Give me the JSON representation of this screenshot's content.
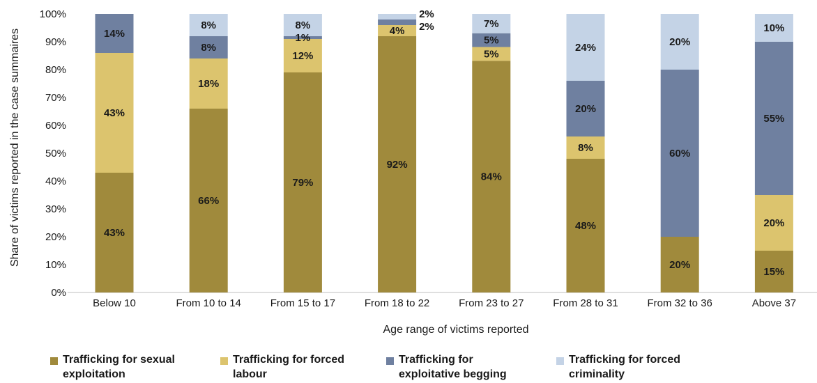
{
  "chart_data": {
    "type": "bar",
    "stacked": true,
    "xlabel": "Age range of victims reported",
    "ylabel": "Share of victims reported in the case summaires",
    "ylim": [
      0,
      100
    ],
    "yticks": [
      "0%",
      "10%",
      "20%",
      "30%",
      "40%",
      "50%",
      "60%",
      "70%",
      "80%",
      "90%",
      "100%"
    ],
    "categories": [
      "Below 10",
      "From 10 to 14",
      "From 15 to 17",
      "From 18 to 22",
      "From 23 to 27",
      "From 28 to 31",
      "From 32 to 36",
      "Above 37"
    ],
    "series": [
      {
        "name": "Trafficking for sexual exploitation",
        "legend_lines": [
          "Trafficking for sexual",
          "exploitation"
        ],
        "color": "#a08a3c",
        "values": [
          43,
          66,
          79,
          92,
          84,
          48,
          20,
          15
        ],
        "labels": [
          "43%",
          "66%",
          "79%",
          "92%",
          "84%",
          "48%",
          "20%",
          "15%"
        ]
      },
      {
        "name": "Trafficking for forced labour",
        "legend_lines": [
          "Trafficking for forced",
          "labour"
        ],
        "color": "#dcc46e",
        "values": [
          43,
          18,
          12,
          4,
          5,
          8,
          0,
          20
        ],
        "labels": [
          "43%",
          "18%",
          "12%",
          "4%",
          "5%",
          "8%",
          "",
          "20%"
        ]
      },
      {
        "name": "Trafficking for exploitative begging",
        "legend_lines": [
          "Trafficking for",
          "exploitative begging"
        ],
        "color": "#6f80a0",
        "values": [
          14,
          8,
          1,
          2,
          5,
          20,
          60,
          55
        ],
        "labels": [
          "14%",
          "8%",
          "1%",
          "2%",
          "5%",
          "20%",
          "60%",
          "55%"
        ]
      },
      {
        "name": "Trafficking for forced criminality",
        "legend_lines": [
          "Trafficking for forced",
          "criminality"
        ],
        "color": "#c4d3e6",
        "values": [
          0,
          8,
          8,
          2,
          7,
          24,
          20,
          10
        ],
        "labels": [
          "",
          "8%",
          "8%",
          "2%",
          "7%",
          "24%",
          "20%",
          "10%"
        ]
      }
    ],
    "grid": false,
    "legend_position": "bottom"
  }
}
